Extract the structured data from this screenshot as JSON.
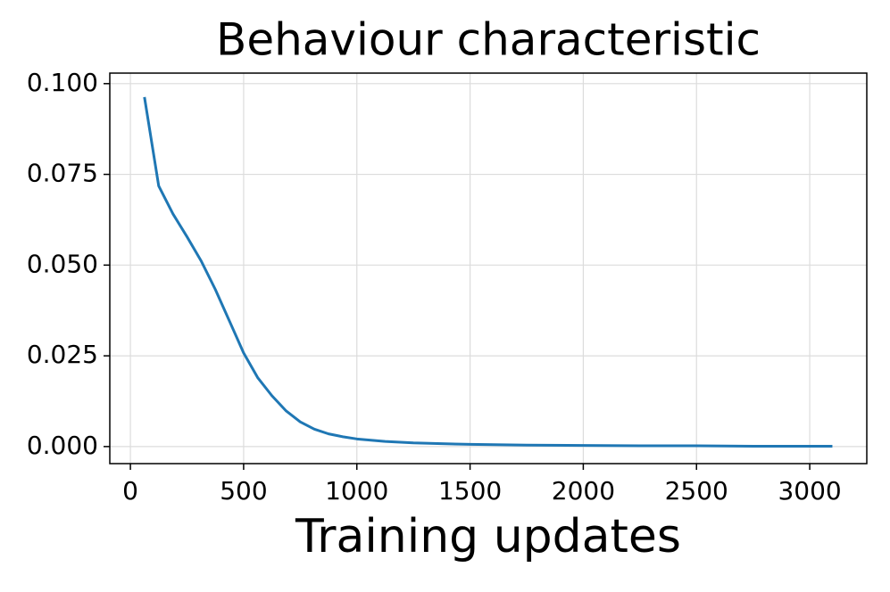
{
  "chart_data": {
    "type": "line",
    "title": "Behaviour characteristic",
    "x_label": "Training updates",
    "x": [
      62,
      125,
      188,
      250,
      312,
      375,
      438,
      500,
      562,
      625,
      688,
      750,
      812,
      875,
      938,
      1000,
      1125,
      1250,
      1375,
      1500,
      1750,
      2000,
      2250,
      2500,
      2750,
      3100
    ],
    "series": [
      {
        "name": "Behaviour characteristic",
        "color": "#1f77b4",
        "values": [
          0.0963,
          0.0718,
          0.0641,
          0.0578,
          0.0512,
          0.0433,
          0.0345,
          0.0258,
          0.019,
          0.014,
          0.0098,
          0.0068,
          0.0048,
          0.0035,
          0.0027,
          0.0021,
          0.0014,
          0.001,
          0.0008,
          0.0006,
          0.0004,
          0.0003,
          0.0002,
          0.0002,
          0.0001,
          0.0001
        ]
      }
    ],
    "xlim": [
      -91,
      3252
    ],
    "ylim": [
      -0.0047,
      0.1029
    ],
    "xticks": [
      0,
      500,
      1000,
      1500,
      2000,
      2500,
      3000
    ],
    "yticks": [
      {
        "value": 0,
        "label": "0.000"
      },
      {
        "value": 0.025,
        "label": "0.025"
      },
      {
        "value": 0.05,
        "label": "0.050"
      },
      {
        "value": 0.075,
        "label": "0.075"
      },
      {
        "value": 0.1,
        "label": "0.100"
      }
    ],
    "grid": true
  }
}
